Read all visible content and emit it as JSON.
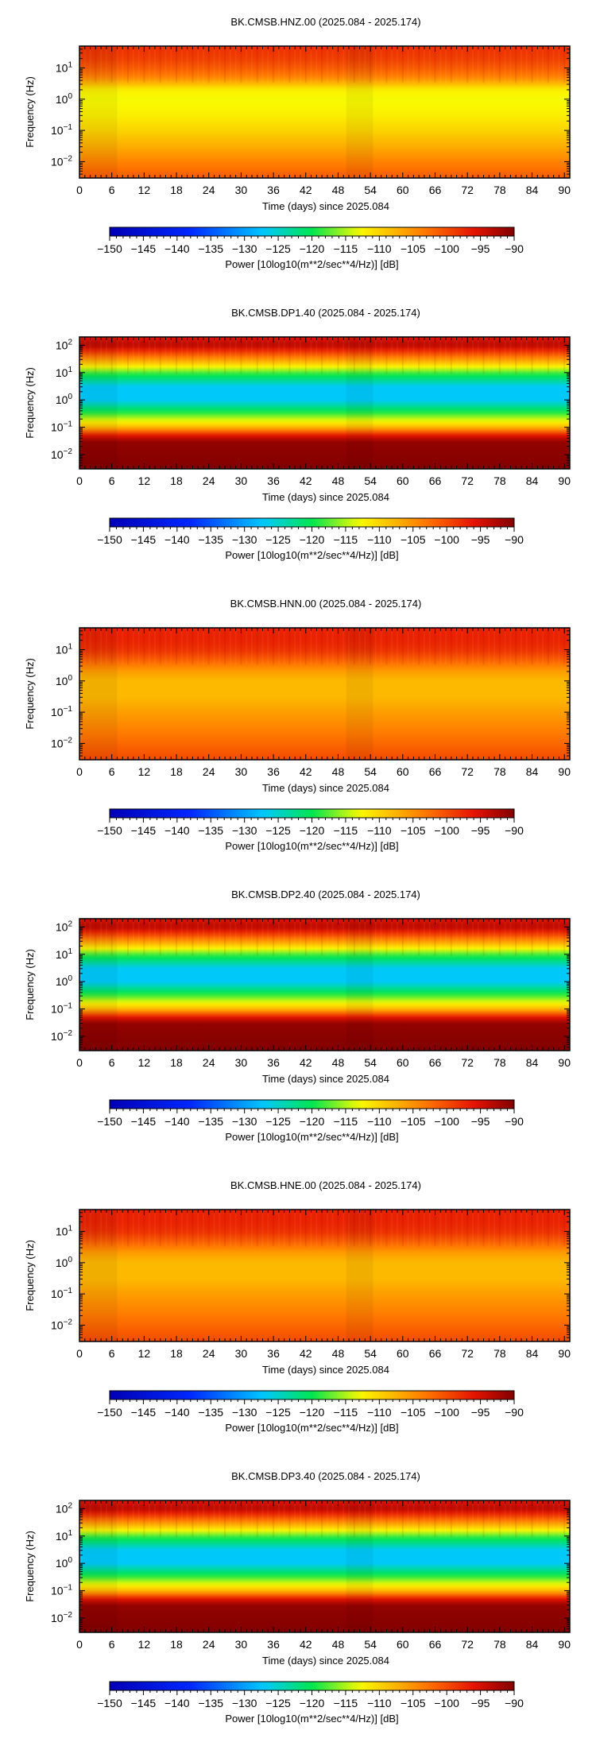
{
  "chart_data": [
    {
      "type": "heatmap",
      "title": "BK.CMSB.HNZ.00 (2025.084 - 2025.174)",
      "xlabel": "Time (days) since 2025.084",
      "ylabel": "Frequency (Hz)",
      "xlim": [
        0,
        91
      ],
      "ylim": [
        0.003,
        50
      ],
      "yscale": "log",
      "x_ticks": [
        "0",
        "6",
        "12",
        "18",
        "24",
        "30",
        "36",
        "42",
        "48",
        "54",
        "60",
        "66",
        "72",
        "78",
        "84",
        "90"
      ],
      "y_ticks": [
        {
          "exp": "1",
          "value": 10
        },
        {
          "exp": "0",
          "value": 1
        },
        {
          "exp": "−1",
          "value": 0.1
        },
        {
          "exp": "−2",
          "value": 0.01
        }
      ],
      "colorbar": {
        "label": "Power [10log10(m**2/sec**4/Hz)] [dB]",
        "ticks": [
          "−150",
          "−145",
          "−140",
          "−135",
          "−130",
          "−125",
          "−120",
          "−115",
          "−110",
          "−105",
          "−100",
          "−95",
          "−90"
        ],
        "range": [
          -150,
          -90
        ],
        "colormap": "jet"
      },
      "power_profile": [
        {
          "freq_hz": 50,
          "db": -98
        },
        {
          "freq_hz": 20,
          "db": -99
        },
        {
          "freq_hz": 10,
          "db": -101
        },
        {
          "freq_hz": 5,
          "db": -104
        },
        {
          "freq_hz": 2,
          "db": -112
        },
        {
          "freq_hz": 1,
          "db": -113
        },
        {
          "freq_hz": 0.3,
          "db": -112
        },
        {
          "freq_hz": 0.1,
          "db": -110
        },
        {
          "freq_hz": 0.03,
          "db": -107
        },
        {
          "freq_hz": 0.01,
          "db": -104
        },
        {
          "freq_hz": 0.003,
          "db": -101
        }
      ]
    },
    {
      "type": "heatmap",
      "title": "BK.CMSB.DP1.40 (2025.084 - 2025.174)",
      "xlabel": "Time (days) since 2025.084",
      "ylabel": "Frequency (Hz)",
      "xlim": [
        0,
        91
      ],
      "ylim": [
        0.003,
        200
      ],
      "yscale": "log",
      "x_ticks": [
        "0",
        "6",
        "12",
        "18",
        "24",
        "30",
        "36",
        "42",
        "48",
        "54",
        "60",
        "66",
        "72",
        "78",
        "84",
        "90"
      ],
      "y_ticks": [
        {
          "exp": "2",
          "value": 100
        },
        {
          "exp": "1",
          "value": 10
        },
        {
          "exp": "0",
          "value": 1
        },
        {
          "exp": "−1",
          "value": 0.1
        },
        {
          "exp": "−2",
          "value": 0.01
        }
      ],
      "colorbar": {
        "label": "Power [10log10(m**2/sec**4/Hz)] [dB]",
        "ticks": [
          "−150",
          "−145",
          "−140",
          "−135",
          "−130",
          "−125",
          "−120",
          "−115",
          "−110",
          "−105",
          "−100",
          "−95",
          "−90"
        ],
        "range": [
          -150,
          -90
        ],
        "colormap": "jet"
      },
      "power_profile": [
        {
          "freq_hz": 200,
          "db": -96
        },
        {
          "freq_hz": 100,
          "db": -93
        },
        {
          "freq_hz": 50,
          "db": -100
        },
        {
          "freq_hz": 20,
          "db": -110
        },
        {
          "freq_hz": 10,
          "db": -118
        },
        {
          "freq_hz": 3,
          "db": -127
        },
        {
          "freq_hz": 1,
          "db": -127
        },
        {
          "freq_hz": 0.3,
          "db": -118
        },
        {
          "freq_hz": 0.1,
          "db": -108
        },
        {
          "freq_hz": 0.05,
          "db": -96
        },
        {
          "freq_hz": 0.03,
          "db": -91
        },
        {
          "freq_hz": 0.003,
          "db": -90
        }
      ]
    },
    {
      "type": "heatmap",
      "title": "BK.CMSB.HNN.00 (2025.084 - 2025.174)",
      "xlabel": "Time (days) since 2025.084",
      "ylabel": "Frequency (Hz)",
      "xlim": [
        0,
        91
      ],
      "ylim": [
        0.003,
        50
      ],
      "yscale": "log",
      "x_ticks": [
        "0",
        "6",
        "12",
        "18",
        "24",
        "30",
        "36",
        "42",
        "48",
        "54",
        "60",
        "66",
        "72",
        "78",
        "84",
        "90"
      ],
      "y_ticks": [
        {
          "exp": "1",
          "value": 10
        },
        {
          "exp": "0",
          "value": 1
        },
        {
          "exp": "−1",
          "value": 0.1
        },
        {
          "exp": "−2",
          "value": 0.01
        }
      ],
      "colorbar": {
        "label": "Power [10log10(m**2/sec**4/Hz)] [dB]",
        "ticks": [
          "−150",
          "−145",
          "−140",
          "−135",
          "−130",
          "−125",
          "−120",
          "−115",
          "−110",
          "−105",
          "−100",
          "−95",
          "−90"
        ],
        "range": [
          -150,
          -90
        ],
        "colormap": "jet"
      },
      "power_profile": [
        {
          "freq_hz": 50,
          "db": -97
        },
        {
          "freq_hz": 20,
          "db": -97
        },
        {
          "freq_hz": 10,
          "db": -98
        },
        {
          "freq_hz": 5,
          "db": -101
        },
        {
          "freq_hz": 2,
          "db": -106
        },
        {
          "freq_hz": 1,
          "db": -108
        },
        {
          "freq_hz": 0.3,
          "db": -108
        },
        {
          "freq_hz": 0.1,
          "db": -106
        },
        {
          "freq_hz": 0.03,
          "db": -104
        },
        {
          "freq_hz": 0.01,
          "db": -102
        },
        {
          "freq_hz": 0.003,
          "db": -100
        }
      ]
    },
    {
      "type": "heatmap",
      "title": "BK.CMSB.DP2.40 (2025.084 - 2025.174)",
      "xlabel": "Time (days) since 2025.084",
      "ylabel": "Frequency (Hz)",
      "xlim": [
        0,
        91
      ],
      "ylim": [
        0.003,
        200
      ],
      "yscale": "log",
      "x_ticks": [
        "0",
        "6",
        "12",
        "18",
        "24",
        "30",
        "36",
        "42",
        "48",
        "54",
        "60",
        "66",
        "72",
        "78",
        "84",
        "90"
      ],
      "y_ticks": [
        {
          "exp": "2",
          "value": 100
        },
        {
          "exp": "1",
          "value": 10
        },
        {
          "exp": "0",
          "value": 1
        },
        {
          "exp": "−1",
          "value": 0.1
        },
        {
          "exp": "−2",
          "value": 0.01
        }
      ],
      "colorbar": {
        "label": "Power [10log10(m**2/sec**4/Hz)] [dB]",
        "ticks": [
          "−150",
          "−145",
          "−140",
          "−135",
          "−130",
          "−125",
          "−120",
          "−115",
          "−110",
          "−105",
          "−100",
          "−95",
          "−90"
        ],
        "range": [
          -150,
          -90
        ],
        "colormap": "jet"
      },
      "power_profile": [
        {
          "freq_hz": 200,
          "db": -96
        },
        {
          "freq_hz": 100,
          "db": -93
        },
        {
          "freq_hz": 50,
          "db": -100
        },
        {
          "freq_hz": 20,
          "db": -110
        },
        {
          "freq_hz": 10,
          "db": -118
        },
        {
          "freq_hz": 3,
          "db": -127
        },
        {
          "freq_hz": 1,
          "db": -127
        },
        {
          "freq_hz": 0.3,
          "db": -118
        },
        {
          "freq_hz": 0.1,
          "db": -108
        },
        {
          "freq_hz": 0.05,
          "db": -96
        },
        {
          "freq_hz": 0.03,
          "db": -91
        },
        {
          "freq_hz": 0.003,
          "db": -90
        }
      ]
    },
    {
      "type": "heatmap",
      "title": "BK.CMSB.HNE.00 (2025.084 - 2025.174)",
      "xlabel": "Time (days) since 2025.084",
      "ylabel": "Frequency (Hz)",
      "xlim": [
        0,
        91
      ],
      "ylim": [
        0.003,
        50
      ],
      "yscale": "log",
      "x_ticks": [
        "0",
        "6",
        "12",
        "18",
        "24",
        "30",
        "36",
        "42",
        "48",
        "54",
        "60",
        "66",
        "72",
        "78",
        "84",
        "90"
      ],
      "y_ticks": [
        {
          "exp": "1",
          "value": 10
        },
        {
          "exp": "0",
          "value": 1
        },
        {
          "exp": "−1",
          "value": 0.1
        },
        {
          "exp": "−2",
          "value": 0.01
        }
      ],
      "colorbar": {
        "label": "Power [10log10(m**2/sec**4/Hz)] [dB]",
        "ticks": [
          "−150",
          "−145",
          "−140",
          "−135",
          "−130",
          "−125",
          "−120",
          "−115",
          "−110",
          "−105",
          "−100",
          "−95",
          "−90"
        ],
        "range": [
          -150,
          -90
        ],
        "colormap": "jet"
      },
      "power_profile": [
        {
          "freq_hz": 50,
          "db": -97
        },
        {
          "freq_hz": 20,
          "db": -97
        },
        {
          "freq_hz": 10,
          "db": -98
        },
        {
          "freq_hz": 5,
          "db": -101
        },
        {
          "freq_hz": 2,
          "db": -106
        },
        {
          "freq_hz": 1,
          "db": -108
        },
        {
          "freq_hz": 0.3,
          "db": -108
        },
        {
          "freq_hz": 0.1,
          "db": -106
        },
        {
          "freq_hz": 0.03,
          "db": -104
        },
        {
          "freq_hz": 0.01,
          "db": -102
        },
        {
          "freq_hz": 0.003,
          "db": -100
        }
      ]
    },
    {
      "type": "heatmap",
      "title": "BK.CMSB.DP3.40 (2025.084 - 2025.174)",
      "xlabel": "Time (days) since 2025.084",
      "ylabel": "Frequency (Hz)",
      "xlim": [
        0,
        91
      ],
      "ylim": [
        0.003,
        200
      ],
      "yscale": "log",
      "x_ticks": [
        "0",
        "6",
        "12",
        "18",
        "24",
        "30",
        "36",
        "42",
        "48",
        "54",
        "60",
        "66",
        "72",
        "78",
        "84",
        "90"
      ],
      "y_ticks": [
        {
          "exp": "2",
          "value": 100
        },
        {
          "exp": "1",
          "value": 10
        },
        {
          "exp": "0",
          "value": 1
        },
        {
          "exp": "−1",
          "value": 0.1
        },
        {
          "exp": "−2",
          "value": 0.01
        }
      ],
      "colorbar": {
        "label": "Power [10log10(m**2/sec**4/Hz)] [dB]",
        "ticks": [
          "−150",
          "−145",
          "−140",
          "−135",
          "−130",
          "−125",
          "−120",
          "−115",
          "−110",
          "−105",
          "−100",
          "−95",
          "−90"
        ],
        "range": [
          -150,
          -90
        ],
        "colormap": "jet"
      },
      "power_profile": [
        {
          "freq_hz": 200,
          "db": -96
        },
        {
          "freq_hz": 100,
          "db": -93
        },
        {
          "freq_hz": 50,
          "db": -100
        },
        {
          "freq_hz": 20,
          "db": -110
        },
        {
          "freq_hz": 10,
          "db": -118
        },
        {
          "freq_hz": 3,
          "db": -127
        },
        {
          "freq_hz": 1,
          "db": -127
        },
        {
          "freq_hz": 0.3,
          "db": -118
        },
        {
          "freq_hz": 0.1,
          "db": -108
        },
        {
          "freq_hz": 0.05,
          "db": -96
        },
        {
          "freq_hz": 0.03,
          "db": -91
        },
        {
          "freq_hz": 0.003,
          "db": -90
        }
      ]
    }
  ]
}
